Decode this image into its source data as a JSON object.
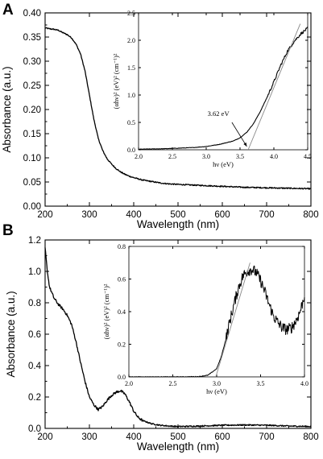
{
  "chart_data": [
    {
      "id": "A-main",
      "panel_label": "A",
      "type": "line",
      "xlabel": "Wavelength (nm)",
      "ylabel": "Absorbance (a.u.)",
      "xlim": [
        200,
        800
      ],
      "ylim": [
        0.0,
        0.4
      ],
      "xticks": [
        "200",
        "300",
        "400",
        "500",
        "600",
        "700",
        "800"
      ],
      "yticks": [
        "0.00",
        "0.05",
        "0.10",
        "0.15",
        "0.20",
        "0.25",
        "0.30",
        "0.35",
        "0.40"
      ],
      "grid": false,
      "series": [
        {
          "x": [
            200,
            210,
            220,
            230,
            240,
            250,
            260,
            270,
            280,
            290,
            300,
            310,
            320,
            330,
            340,
            350,
            360,
            370,
            380,
            390,
            400,
            420,
            440,
            460,
            480,
            500,
            550,
            600,
            650,
            700,
            750,
            800
          ],
          "y": [
            0.369,
            0.367,
            0.366,
            0.364,
            0.359,
            0.355,
            0.348,
            0.335,
            0.315,
            0.28,
            0.23,
            0.18,
            0.14,
            0.115,
            0.098,
            0.087,
            0.078,
            0.071,
            0.066,
            0.062,
            0.059,
            0.054,
            0.051,
            0.048,
            0.046,
            0.045,
            0.043,
            0.041,
            0.039,
            0.038,
            0.037,
            0.036
          ]
        }
      ]
    },
    {
      "id": "A-inset",
      "type": "line",
      "xlabel": "hν (eV)",
      "ylabel": "(αhν)² (eV)² (cm⁻¹)²",
      "xlim": [
        2.0,
        4.5
      ],
      "ylim": [
        0.0,
        2.5
      ],
      "xticks": [
        "2.0",
        "2.5",
        "3.0",
        "3.5",
        "4.0",
        "4.5"
      ],
      "yticks": [
        "0.0",
        "0.5",
        "1.0",
        "1.5",
        "2.0",
        "2.5"
      ],
      "grid": false,
      "annotations": [
        {
          "text": "3.62 eV"
        }
      ],
      "series": [
        {
          "x": [
            2.0,
            2.2,
            2.4,
            2.6,
            2.8,
            3.0,
            3.2,
            3.4,
            3.5,
            3.6,
            3.7,
            3.8,
            3.9,
            4.0,
            4.1,
            4.2,
            4.3,
            4.4,
            4.5
          ],
          "y": [
            0.01,
            0.015,
            0.02,
            0.03,
            0.04,
            0.06,
            0.1,
            0.16,
            0.22,
            0.32,
            0.48,
            0.7,
            0.96,
            1.24,
            1.54,
            1.8,
            1.98,
            2.12,
            2.22
          ]
        }
      ],
      "fit_line": {
        "x": [
          3.62,
          4.39
        ],
        "y": [
          0.0,
          2.3
        ]
      }
    },
    {
      "id": "B-main",
      "panel_label": "B",
      "type": "line",
      "xlabel": "Wavelength (nm)",
      "ylabel": "Absorbance (a.u.)",
      "xlim": [
        200,
        800
      ],
      "ylim": [
        0.0,
        1.2
      ],
      "xticks": [
        "200",
        "300",
        "400",
        "500",
        "600",
        "700",
        "800"
      ],
      "yticks": [
        "0.0",
        "0.2",
        "0.4",
        "0.6",
        "0.8",
        "1.0",
        "1.2"
      ],
      "grid": false,
      "series": [
        {
          "x": [
            200,
            205,
            210,
            220,
            230,
            240,
            250,
            260,
            270,
            280,
            290,
            300,
            310,
            320,
            330,
            340,
            350,
            360,
            370,
            380,
            390,
            400,
            410,
            420,
            440,
            460,
            480,
            500,
            550,
            600,
            650,
            700,
            750,
            800
          ],
          "y": [
            1.15,
            1.0,
            0.9,
            0.83,
            0.79,
            0.76,
            0.72,
            0.66,
            0.55,
            0.42,
            0.3,
            0.2,
            0.15,
            0.12,
            0.14,
            0.18,
            0.21,
            0.23,
            0.24,
            0.22,
            0.17,
            0.11,
            0.07,
            0.05,
            0.03,
            0.02,
            0.015,
            0.012,
            0.015,
            0.02,
            0.022,
            0.02,
            0.015,
            0.012
          ]
        }
      ]
    },
    {
      "id": "B-inset",
      "type": "line",
      "xlabel": "hν (eV)",
      "ylabel": "(αhν)² (eV)² (cm⁻¹)²",
      "xlim": [
        2.0,
        4.0
      ],
      "ylim": [
        0.0,
        0.8
      ],
      "xticks": [
        "2.0",
        "2.5",
        "3.0",
        "3.5",
        "4.0"
      ],
      "yticks": [
        "0.0",
        "0.2",
        "0.4",
        "0.6",
        "0.8"
      ],
      "grid": false,
      "series": [
        {
          "x": [
            2.0,
            2.2,
            2.4,
            2.6,
            2.8,
            2.9,
            3.0,
            3.05,
            3.1,
            3.15,
            3.2,
            3.25,
            3.3,
            3.35,
            3.4,
            3.45,
            3.5,
            3.55,
            3.6,
            3.65,
            3.7,
            3.75,
            3.8,
            3.85,
            3.9,
            3.95,
            4.0
          ],
          "y": [
            0.0,
            0.0,
            0.0,
            0.0,
            0.002,
            0.01,
            0.05,
            0.12,
            0.22,
            0.34,
            0.45,
            0.55,
            0.62,
            0.65,
            0.66,
            0.64,
            0.59,
            0.52,
            0.44,
            0.37,
            0.33,
            0.3,
            0.29,
            0.3,
            0.34,
            0.4,
            0.5
          ]
        }
      ],
      "fit_line": {
        "x": [
          2.99,
          3.38
        ],
        "y": [
          0.0,
          0.7
        ]
      }
    }
  ],
  "colors": {
    "line": "#000000",
    "fit_line": "#888888",
    "background": "#ffffff"
  }
}
